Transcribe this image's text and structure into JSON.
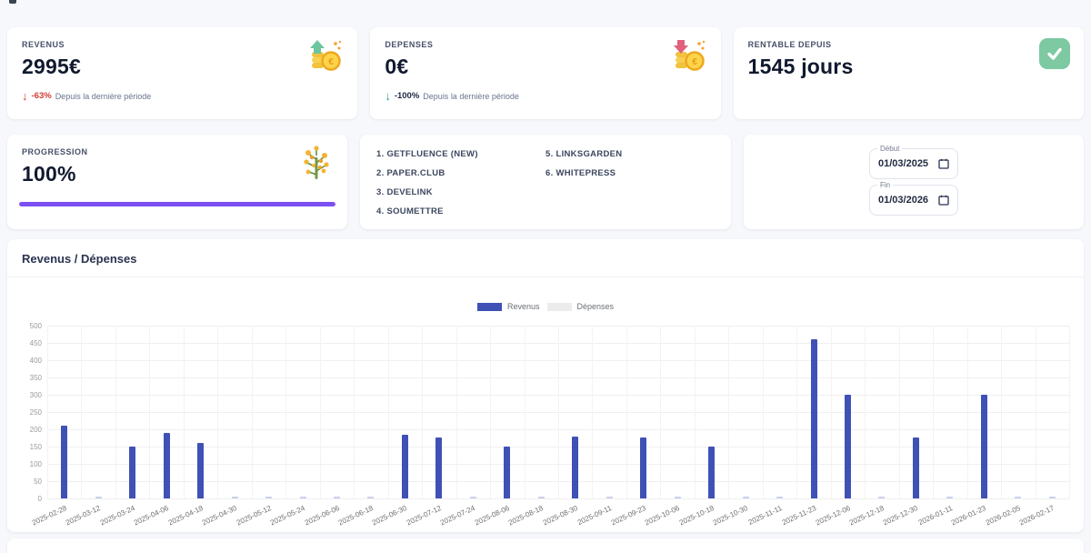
{
  "stats": {
    "revenus": {
      "label": "REVENUS",
      "value": "2995€",
      "delta": "-63%",
      "caption": "Depuis la dernière période"
    },
    "depenses": {
      "label": "DEPENSES",
      "value": "0€",
      "delta": "-100%",
      "caption": "Depuis la dernière période"
    },
    "rentable": {
      "label": "RENTABLE DEPUIS",
      "value": "1545 jours"
    },
    "progression": {
      "label": "PROGRESSION",
      "value": "100%",
      "percent": 100
    }
  },
  "platforms": {
    "col1": [
      "1. GETFLUENCE (NEW)",
      "2. PAPER.CLUB",
      "3. DEVELINK",
      "4. SOUMETTRE"
    ],
    "col2": [
      "5. LINKSGARDEN",
      "6. WHITEPRESS"
    ]
  },
  "dates": {
    "start_label": "Début",
    "start_value": "01/03/2025",
    "end_label": "Fin",
    "end_value": "01/03/2026"
  },
  "chart": {
    "title": "Revenus / Dépenses"
  },
  "chart_data": {
    "type": "bar",
    "title": "Revenus / Dépenses",
    "categories": [
      "2025-02-28",
      "2025-03-12",
      "2025-03-24",
      "2025-04-06",
      "2025-04-18",
      "2025-04-30",
      "2025-05-12",
      "2025-05-24",
      "2025-06-06",
      "2025-06-18",
      "2025-06-30",
      "2025-07-12",
      "2025-07-24",
      "2025-08-06",
      "2025-08-18",
      "2025-08-30",
      "2025-09-11",
      "2025-09-23",
      "2025-10-06",
      "2025-10-18",
      "2025-10-30",
      "2025-11-11",
      "2025-11-23",
      "2025-12-06",
      "2025-12-18",
      "2025-12-30",
      "2026-01-11",
      "2026-01-23",
      "2026-02-05",
      "2026-02-17"
    ],
    "series": [
      {
        "name": "Revenus",
        "color": "#3f51b5",
        "values": [
          211,
          2,
          150,
          190,
          160,
          2,
          2,
          2,
          2,
          2,
          184,
          177,
          2,
          149,
          2,
          178,
          2,
          177,
          2,
          149,
          2,
          2,
          461,
          300,
          2,
          177,
          2,
          300,
          2,
          2
        ]
      },
      {
        "name": "Dépenses",
        "color": "#ececec",
        "values": [
          0,
          0,
          0,
          0,
          0,
          0,
          0,
          0,
          0,
          0,
          0,
          0,
          0,
          0,
          0,
          0,
          0,
          0,
          0,
          0,
          0,
          0,
          0,
          0,
          0,
          0,
          0,
          0,
          0,
          0
        ]
      }
    ],
    "ylim": [
      0,
      500
    ],
    "yticks": [
      0,
      50,
      100,
      150,
      200,
      250,
      300,
      350,
      400,
      450,
      500
    ],
    "grid": true,
    "legend_position": "top-center",
    "xlabel": "",
    "ylabel": ""
  },
  "colors": {
    "bar_revenus": "#3f51b5",
    "bar_tiny": "#c9cfee",
    "swatch_depenses": "#ececec",
    "progress": "#7b4ff2",
    "delta_red": "#d23c36",
    "delta_green": "#2aa183",
    "check_green": "#7dc9a1"
  }
}
